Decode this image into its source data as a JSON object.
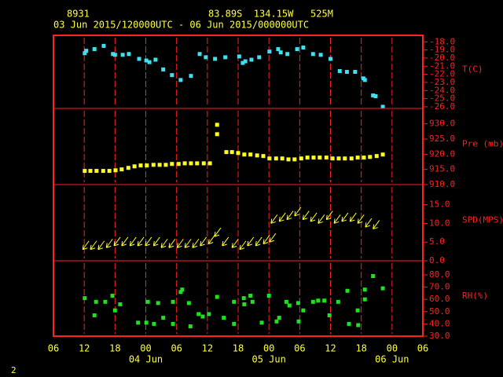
{
  "header": {
    "station": "8931",
    "location": "83.89S  134.15W   525M",
    "period": "03 Jun 2015/120000UTC - 06 Jun 2015/000000UTC"
  },
  "page_number": "2",
  "x_axis": {
    "xlim": [
      0,
      72
    ],
    "xticks": [
      {
        "value": 0,
        "label": "06"
      },
      {
        "value": 6,
        "label": "12"
      },
      {
        "value": 12,
        "label": "18"
      },
      {
        "value": 18,
        "label": "00"
      },
      {
        "value": 24,
        "label": "06"
      },
      {
        "value": 30,
        "label": "12"
      },
      {
        "value": 36,
        "label": "18"
      },
      {
        "value": 42,
        "label": "00"
      },
      {
        "value": 48,
        "label": "06"
      },
      {
        "value": 54,
        "label": "12"
      },
      {
        "value": 60,
        "label": "18"
      },
      {
        "value": 66,
        "label": "00"
      },
      {
        "value": 72,
        "label": "06"
      }
    ],
    "date_labels": [
      {
        "value": 18,
        "label": "04 Jun"
      },
      {
        "value": 42,
        "label": "05 Jun"
      },
      {
        "value": 66,
        "label": "06 Jun"
      }
    ],
    "grid": true,
    "grid_color": "#ff2020"
  },
  "chart_data": [
    {
      "type": "scatter",
      "marker": "square",
      "ylabel": "T(C)",
      "color": "#40e0f0",
      "ylim": [
        -26.2,
        -17.2
      ],
      "yticks": [
        {
          "value": -18,
          "label": "-18.0"
        },
        {
          "value": -19,
          "label": "-19.0"
        },
        {
          "value": -20,
          "label": "-20.0"
        },
        {
          "value": -21,
          "label": "-21.0"
        },
        {
          "value": -22,
          "label": "-22.0"
        },
        {
          "value": -23,
          "label": "-23.0"
        },
        {
          "value": -24,
          "label": "-24.0"
        },
        {
          "value": -25,
          "label": "-25.0"
        },
        {
          "value": -26,
          "label": "-26.0"
        }
      ],
      "x": [
        6.1,
        6.4,
        8.0,
        9.8,
        11.6,
        12.0,
        13.5,
        14.7,
        16.7,
        18.1,
        18.7,
        19.9,
        21.4,
        23.1,
        24.8,
        26.8,
        28.5,
        29.7,
        31.5,
        33.5,
        36.2,
        36.9,
        37.4,
        38.6,
        40.1,
        42.1,
        43.8,
        44.3,
        45.6,
        47.5,
        48.7,
        50.6,
        52.1,
        54.0,
        55.8,
        57.2,
        58.8,
        60.4,
        60.7,
        62.3,
        62.8,
        64.2
      ],
      "values": [
        -19.4,
        -19.1,
        -18.9,
        -18.5,
        -19.5,
        -19.6,
        -19.6,
        -19.5,
        -20.1,
        -20.3,
        -20.5,
        -20.2,
        -21.4,
        -22.1,
        -22.7,
        -22.2,
        -19.5,
        -19.9,
        -20.1,
        -19.9,
        -19.8,
        -20.6,
        -20.4,
        -20.2,
        -19.9,
        -19.2,
        -18.9,
        -19.3,
        -19.5,
        -18.9,
        -18.7,
        -19.5,
        -19.6,
        -20.1,
        -21.6,
        -21.7,
        -21.7,
        -22.5,
        -22.7,
        -24.6,
        -24.7,
        -26.0
      ]
    },
    {
      "type": "scatter",
      "marker": "square",
      "ylabel": "Pre (mb)",
      "color": "#ffff20",
      "ylim": [
        910,
        935.1
      ],
      "yticks": [
        {
          "value": 910,
          "label": "910.0"
        },
        {
          "value": 915,
          "label": "915.0"
        },
        {
          "value": 920,
          "label": "920.0"
        },
        {
          "value": 925,
          "label": "925.0"
        },
        {
          "value": 930,
          "label": "930.0"
        }
      ],
      "x": [
        6.1,
        7.2,
        8.4,
        9.7,
        10.9,
        12.1,
        13.3,
        14.6,
        15.8,
        17.0,
        18.2,
        19.5,
        20.7,
        21.9,
        23.1,
        24.4,
        25.6,
        26.8,
        28.0,
        29.3,
        30.5,
        31.9,
        31.9,
        33.7,
        34.8,
        36.0,
        37.2,
        38.4,
        39.7,
        40.9,
        42.1,
        43.4,
        44.6,
        45.8,
        47.0,
        48.3,
        49.5,
        50.7,
        51.9,
        53.2,
        54.4,
        55.6,
        56.8,
        58.1,
        59.3,
        60.5,
        61.7,
        63.0,
        64.2
      ],
      "values": [
        914.5,
        914.5,
        914.5,
        914.5,
        914.5,
        914.7,
        915.0,
        915.5,
        916.0,
        916.3,
        916.3,
        916.5,
        916.5,
        916.5,
        916.8,
        916.8,
        917.0,
        917.0,
        917.0,
        917.0,
        917.0,
        929.7,
        926.6,
        920.7,
        920.7,
        920.4,
        919.9,
        919.9,
        919.6,
        919.4,
        918.6,
        918.6,
        918.6,
        918.3,
        918.3,
        918.6,
        918.9,
        918.9,
        918.9,
        918.9,
        918.6,
        918.6,
        918.6,
        918.6,
        918.9,
        918.9,
        919.1,
        919.4,
        919.9
      ]
    },
    {
      "type": "scatter",
      "marker": "arrow",
      "ylabel": "SPD(MPS)",
      "color": "#ffff20",
      "ylim": [
        0,
        20.4
      ],
      "yticks": [
        {
          "value": 0,
          "label": "0.0"
        },
        {
          "value": 5,
          "label": "5.0"
        },
        {
          "value": 10,
          "label": "10.0"
        },
        {
          "value": 15,
          "label": "15.0"
        }
      ],
      "x": [
        5.7,
        7.2,
        8.7,
        10.3,
        11.8,
        13.3,
        14.9,
        16.4,
        17.9,
        19.5,
        21.0,
        22.5,
        24.1,
        25.6,
        27.1,
        28.6,
        30.2,
        31.4,
        32.9,
        34.8,
        36.3,
        37.8,
        39.4,
        40.9,
        42.1,
        42.4,
        44.0,
        45.5,
        47.0,
        48.6,
        50.1,
        51.6,
        53.2,
        54.7,
        56.2,
        57.8,
        59.3,
        60.8,
        62.3
      ],
      "values": [
        3,
        3,
        3,
        3.5,
        4,
        4,
        4,
        4,
        4,
        4,
        3.5,
        3.5,
        3.5,
        3.5,
        3.5,
        4,
        4.5,
        6.5,
        4,
        3.5,
        3,
        4,
        4,
        4.5,
        5,
        10,
        10.5,
        11,
        12,
        11,
        10.5,
        10,
        11,
        10,
        10.5,
        10.5,
        10,
        9,
        8.5
      ]
    },
    {
      "type": "scatter",
      "marker": "square",
      "ylabel": "RH(%)",
      "color": "#20e020",
      "ylim": [
        30,
        91.5
      ],
      "yticks": [
        {
          "value": 30,
          "label": "30.0"
        },
        {
          "value": 40,
          "label": "40.0"
        },
        {
          "value": 50,
          "label": "50.0"
        },
        {
          "value": 60,
          "label": "60.0"
        },
        {
          "value": 70,
          "label": "70.0"
        },
        {
          "value": 80,
          "label": "80.0"
        }
      ],
      "x": [
        6.1,
        8.0,
        8.3,
        10.1,
        11.5,
        12.0,
        13.0,
        16.5,
        18.1,
        18.4,
        19.6,
        20.4,
        21.4,
        23.3,
        23.3,
        24.8,
        25.1,
        26.4,
        26.7,
        28.3,
        29.1,
        30.3,
        31.9,
        33.2,
        35.2,
        35.2,
        37.1,
        37.2,
        38.4,
        38.8,
        40.6,
        42.0,
        43.5,
        44.0,
        45.4,
        46.0,
        47.7,
        47.8,
        48.7,
        50.6,
        51.6,
        52.8,
        53.8,
        55.5,
        57.3,
        57.6,
        59.3,
        59.4,
        60.7,
        60.7,
        62.3,
        64.2
      ],
      "values": [
        61,
        47,
        58,
        58,
        63,
        51,
        56,
        41,
        41,
        58,
        40,
        57,
        45,
        58,
        40,
        66,
        68,
        57,
        38,
        48,
        46,
        48,
        62,
        45,
        58,
        40,
        61,
        56,
        63,
        58,
        41,
        63,
        42,
        45,
        58,
        55,
        57,
        42,
        51,
        58,
        59,
        59,
        47,
        58,
        67,
        40,
        51,
        39,
        68,
        60,
        79,
        69
      ]
    }
  ]
}
